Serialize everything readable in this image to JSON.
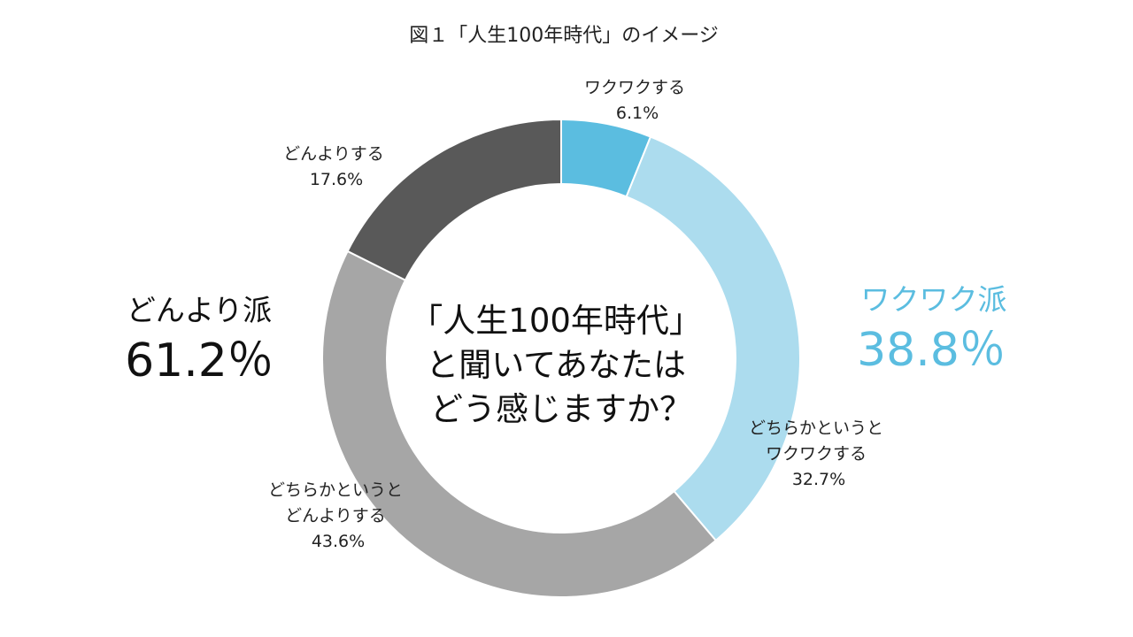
{
  "chart_data": {
    "type": "pie",
    "variant": "donut",
    "title": "図１「人生100年時代」のイメージ",
    "center_text": [
      "「人生100年時代」",
      "と聞いてあなたは",
      "どう感じますか？"
    ],
    "slices": [
      {
        "label_lines": [
          "ワクワクする"
        ],
        "value": 6.1,
        "value_label": "6.1%",
        "color": "#5bbde0"
      },
      {
        "label_lines": [
          "どちらかというと",
          "ワクワクする"
        ],
        "value": 32.7,
        "value_label": "32.7%",
        "color": "#acdcee"
      },
      {
        "label_lines": [
          "どちらかというと",
          "どんよりする"
        ],
        "value": 43.6,
        "value_label": "43.6%",
        "color": "#a6a6a6"
      },
      {
        "label_lines": [
          "どんよりする"
        ],
        "value": 17.6,
        "value_label": "17.6%",
        "color": "#595959"
      }
    ],
    "groups": [
      {
        "name": "どんより派",
        "value": 61.2,
        "value_label": "61.2％",
        "color": "#111111"
      },
      {
        "name": "ワクワク派",
        "value": 38.8,
        "value_label": "38.8％",
        "color": "#5bbde0"
      }
    ]
  }
}
